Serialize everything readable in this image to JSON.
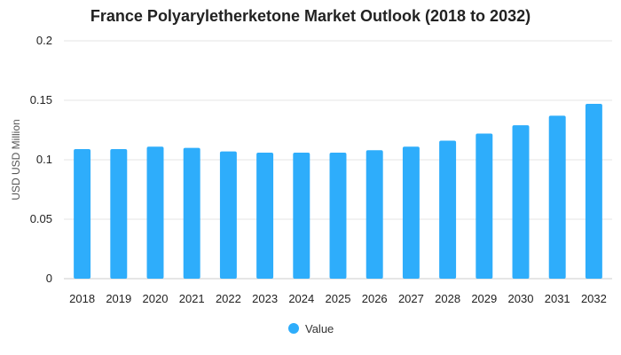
{
  "chart_data": {
    "type": "bar",
    "title": "France Polyaryletherketone Market Outlook (2018 to 2032)",
    "xlabel": "",
    "ylabel": "USD USD Million",
    "categories": [
      "2018",
      "2019",
      "2020",
      "2021",
      "2022",
      "2023",
      "2024",
      "2025",
      "2026",
      "2027",
      "2028",
      "2029",
      "2030",
      "2031",
      "2032"
    ],
    "series": [
      {
        "name": "Value",
        "values": [
          0.109,
          0.109,
          0.111,
          0.11,
          0.107,
          0.106,
          0.106,
          0.106,
          0.108,
          0.111,
          0.116,
          0.122,
          0.129,
          0.137,
          0.147
        ]
      }
    ],
    "ylim": [
      0,
      0.2
    ],
    "yticks": [
      0,
      0.05,
      0.1,
      0.15,
      0.2
    ],
    "ytick_labels": [
      "0",
      "0.05",
      "0.1",
      "0.15",
      "0.2"
    ],
    "grid": true,
    "legend_position": "bottom-center",
    "bar_color": "#2eadfb"
  }
}
